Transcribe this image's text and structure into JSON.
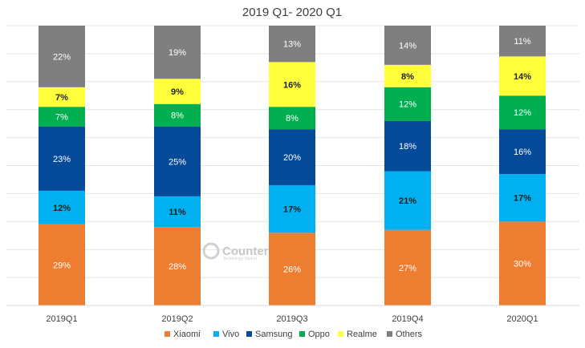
{
  "chart_data": {
    "type": "bar",
    "stacked": true,
    "title": "2019 Q1- 2020 Q1",
    "categories": [
      "2019Q1",
      "2019Q2",
      "2019Q3",
      "2019Q4",
      "2020Q1"
    ],
    "series": [
      {
        "name": "Xiaomi",
        "color": "#ed7d31",
        "label_color": "#ffffff",
        "values": [
          29,
          28,
          26,
          27,
          30
        ]
      },
      {
        "name": "Vivo",
        "color": "#00b0f0",
        "label_color": "#1f1f1f",
        "values": [
          12,
          11,
          17,
          21,
          17
        ]
      },
      {
        "name": "Samsung",
        "color": "#054999",
        "label_color": "#ffffff",
        "values": [
          23,
          25,
          20,
          18,
          16
        ]
      },
      {
        "name": "Oppo",
        "color": "#00b050",
        "label_color": "#ffffff",
        "values": [
          7,
          8,
          8,
          12,
          12
        ]
      },
      {
        "name": "Realme",
        "color": "#ffff3c",
        "label_color": "#1f1f1f",
        "values": [
          7,
          9,
          16,
          8,
          14
        ]
      },
      {
        "name": "Others",
        "color": "#7f7f7f",
        "label_color": "#ffffff",
        "values": [
          22,
          19,
          13,
          14,
          11
        ]
      }
    ],
    "value_suffix": "%",
    "ylim": [
      0,
      100
    ],
    "grid": true,
    "legend": "bottom"
  },
  "watermark": {
    "text": "Counterp",
    "subtext": "Technology Market"
  }
}
